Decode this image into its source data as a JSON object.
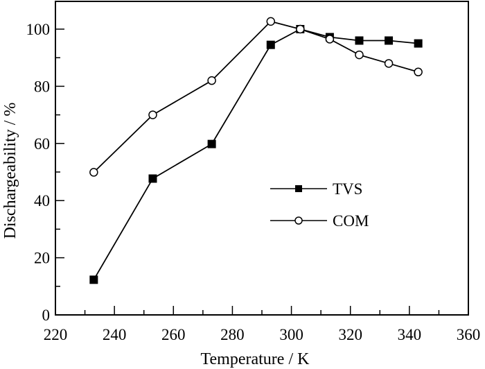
{
  "chart_data": {
    "type": "line",
    "title": "",
    "xlabel": "Temperature / K",
    "ylabel": "Dischargeability / %",
    "xlim": [
      220,
      360
    ],
    "ylim": [
      0,
      110
    ],
    "x_ticks": [
      220,
      240,
      260,
      280,
      300,
      320,
      340,
      360
    ],
    "x_tick_labels": [
      "220",
      "240",
      "260",
      "280",
      "300",
      "320",
      "340",
      "360"
    ],
    "x_minor_step": 10,
    "y_ticks": [
      0,
      20,
      40,
      60,
      80,
      100
    ],
    "y_tick_labels": [
      "0",
      "20",
      "40",
      "60",
      "80",
      "100"
    ],
    "y_minor_step": 10,
    "grid": false,
    "legend_position": "center-right",
    "x": [
      233,
      253,
      273,
      293,
      303,
      313,
      323,
      333,
      343
    ],
    "series": [
      {
        "name": "TVS",
        "marker": "filled-square",
        "color": "#000000",
        "values": [
          12.3,
          47.7,
          59.8,
          94.5,
          100,
          97.2,
          96,
          96,
          95
        ]
      },
      {
        "name": "COM",
        "marker": "open-circle",
        "color": "#000000",
        "values": [
          49.9,
          70,
          82,
          102.7,
          100,
          96.5,
          91,
          88,
          85
        ]
      }
    ]
  }
}
